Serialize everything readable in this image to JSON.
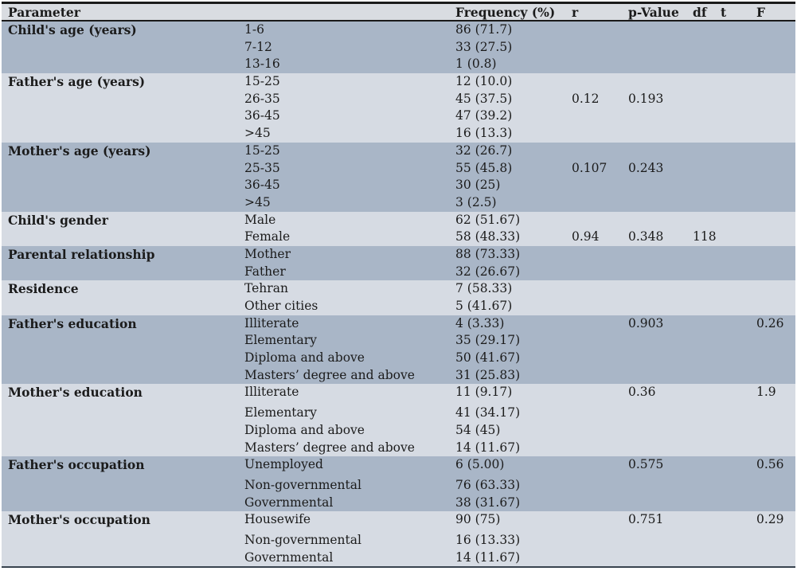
{
  "table": {
    "colors": {
      "band_dark": "#a9b6c7",
      "band_light": "#d6dbe3",
      "header_bg": "#d9dce1",
      "border": "#1a1a1a",
      "border_soft": "#39434f",
      "text": "#1b1b1b"
    },
    "columns": {
      "parameter": "Parameter",
      "frequency": "Frequency (%)",
      "r": "r",
      "p": "p-Value",
      "df": "df",
      "t": "t",
      "F": "F"
    },
    "sections": [
      {
        "parameter": "Child's age (years)",
        "rows": [
          {
            "category": "1-6",
            "frequency": "86 (71.7)"
          },
          {
            "category": "7-12",
            "frequency": "33 (27.5)"
          },
          {
            "category": "13-16",
            "frequency": "1 (0.8)"
          }
        ]
      },
      {
        "parameter": "Father's age (years)",
        "rows": [
          {
            "category": "15-25",
            "frequency": "12 (10.0)"
          },
          {
            "category": "26-35",
            "frequency": "45 (37.5)",
            "r": "0.12",
            "p": "0.193"
          },
          {
            "category": "36-45",
            "frequency": "47 (39.2)"
          },
          {
            "category": ">45",
            "frequency": "16 (13.3)"
          }
        ]
      },
      {
        "parameter": "Mother's age (years)",
        "rows": [
          {
            "category": "15-25",
            "frequency": "32 (26.7)"
          },
          {
            "category": "25-35",
            "frequency": "55 (45.8)",
            "r": "0.107",
            "p": "0.243"
          },
          {
            "category": "36-45",
            "frequency": "30 (25)"
          },
          {
            "category": ">45",
            "frequency": "3 (2.5)"
          }
        ]
      },
      {
        "parameter": "Child's gender",
        "rows": [
          {
            "category": "Male",
            "frequency": "62 (51.67)"
          },
          {
            "category": "Female",
            "frequency": "58 (48.33)",
            "r": "0.94",
            "p": "0.348",
            "df": "118"
          }
        ]
      },
      {
        "parameter": "Parental relationship",
        "rows": [
          {
            "category": "Mother",
            "frequency": "88 (73.33)"
          },
          {
            "category": "Father",
            "frequency": "32 (26.67)"
          }
        ]
      },
      {
        "parameter": "Residence",
        "rows": [
          {
            "category": "Tehran",
            "frequency": "7 (58.33)"
          },
          {
            "category": "Other cities",
            "frequency": "5 (41.67)"
          }
        ]
      },
      {
        "parameter": "Father's education",
        "rows": [
          {
            "category": "Illiterate",
            "frequency": "4 (3.33)",
            "p": "0.903",
            "F": "0.26"
          },
          {
            "category": "Elementary",
            "frequency": "35 (29.17)"
          },
          {
            "category": "Diploma and above",
            "frequency": "50 (41.67)"
          },
          {
            "category": "Masters’ degree and above",
            "frequency": "31 (25.83)"
          }
        ]
      },
      {
        "parameter": "Mother's education",
        "spaced": true,
        "rows": [
          {
            "category": "Illiterate",
            "frequency": "11 (9.17)",
            "p": "0.36",
            "F": "1.9"
          },
          {
            "category": "Elementary",
            "frequency": "41 (34.17)"
          },
          {
            "category": "Diploma and above",
            "frequency": "54 (45)"
          },
          {
            "category": "Masters’ degree and above",
            "frequency": "14 (11.67)"
          }
        ]
      },
      {
        "parameter": "Father's occupation",
        "spaced": true,
        "rows": [
          {
            "category": "Unemployed",
            "frequency": "6 (5.00)",
            "p": "0.575",
            "F": "0.56"
          },
          {
            "category": "Non-governmental",
            "frequency": "76 (63.33)"
          },
          {
            "category": "Governmental",
            "frequency": "38 (31.67)"
          }
        ]
      },
      {
        "parameter": "Mother's occupation",
        "spaced": true,
        "rows": [
          {
            "category": "Housewife",
            "frequency": "90 (75)",
            "p": "0.751",
            "F": "0.29"
          },
          {
            "category": "Non-governmental",
            "frequency": "16 (13.33)"
          },
          {
            "category": "Governmental",
            "frequency": "14 (11.67)"
          }
        ]
      }
    ]
  }
}
